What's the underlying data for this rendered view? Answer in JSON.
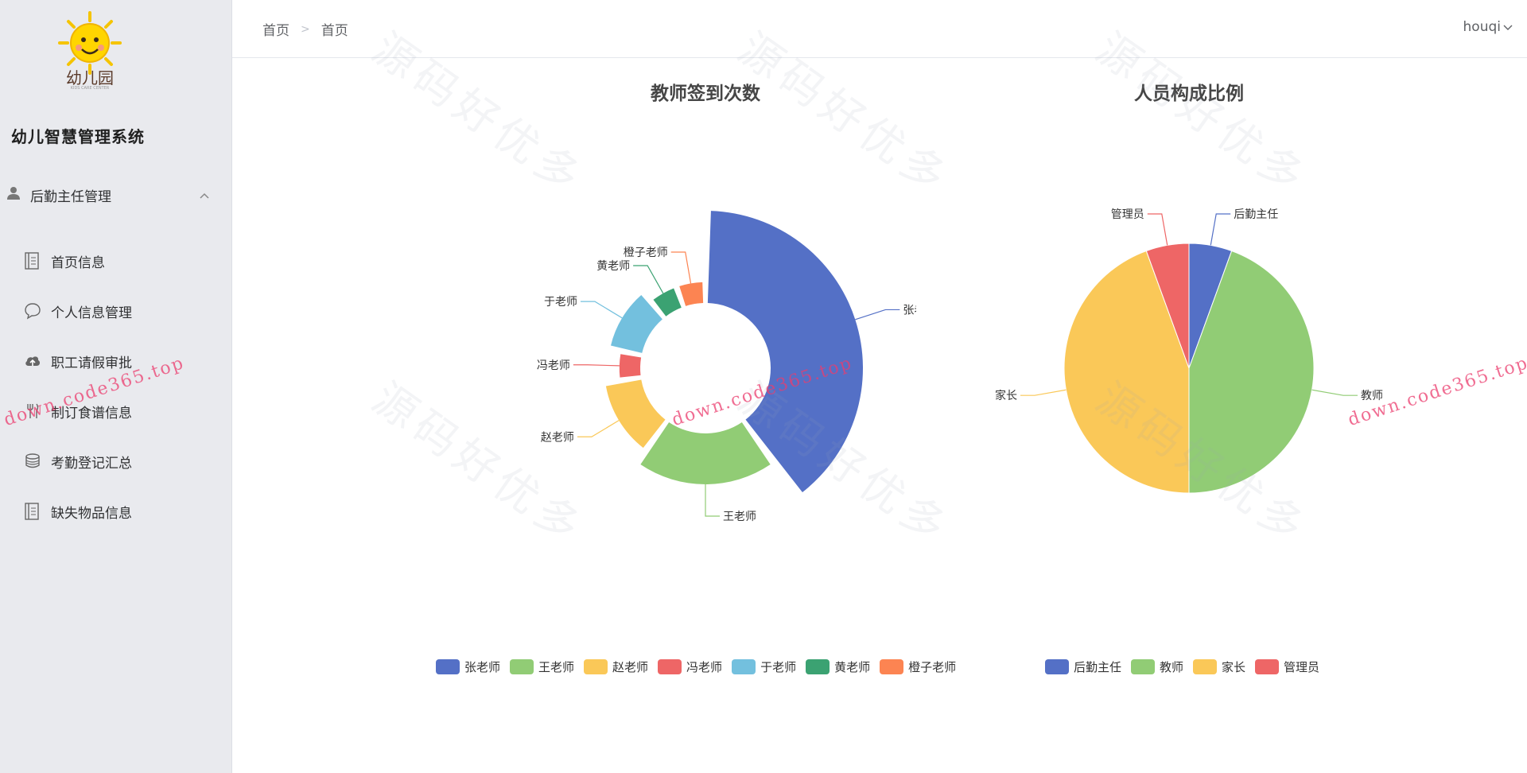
{
  "app": {
    "system_title": "幼儿智慧管理系统",
    "logo_text": "幼儿园",
    "logo_subtext": "KIDS CARE CENTER"
  },
  "sidebar": {
    "group_label": "后勤主任管理",
    "group_icon": "user-icon",
    "items": [
      {
        "label": "首页信息",
        "icon": "document-icon"
      },
      {
        "label": "个人信息管理",
        "icon": "chat-bubble-icon"
      },
      {
        "label": "职工请假审批",
        "icon": "cloud-upload-icon"
      },
      {
        "label": "制订食谱信息",
        "icon": "fork-knife-icon"
      },
      {
        "label": "考勤登记汇总",
        "icon": "coins-icon"
      },
      {
        "label": "缺失物品信息",
        "icon": "document-icon"
      }
    ]
  },
  "header": {
    "breadcrumb": [
      "首页",
      "首页"
    ],
    "username": "houqi"
  },
  "watermarks": {
    "big_text": "源码好优多",
    "pink_text": "down.code365.top"
  },
  "colors": {
    "blue": "#5470c6",
    "green": "#91cc75",
    "yellow": "#fac858",
    "red": "#ee6666",
    "cyan": "#73c0de",
    "teal": "#3ba272",
    "orange": "#fc8452"
  },
  "chart_data": [
    {
      "type": "pie",
      "subtype": "nightingale-rose",
      "title": "教师签到次数",
      "categories": [
        "张老师",
        "王老师",
        "赵老师",
        "冯老师",
        "于老师",
        "黄老师",
        "橙子老师"
      ],
      "values": [
        22,
        11,
        7,
        3,
        6,
        3,
        3
      ],
      "colors": [
        "#5470c6",
        "#91cc75",
        "#fac858",
        "#ee6666",
        "#73c0de",
        "#3ba272",
        "#fc8452"
      ],
      "legend_position": "bottom"
    },
    {
      "type": "pie",
      "title": "人员构成比例",
      "categories": [
        "后勤主任",
        "教师",
        "家长",
        "管理员"
      ],
      "values": [
        1,
        8,
        8,
        1
      ],
      "colors": [
        "#5470c6",
        "#91cc75",
        "#fac858",
        "#ee6666"
      ],
      "legend_position": "bottom"
    }
  ]
}
